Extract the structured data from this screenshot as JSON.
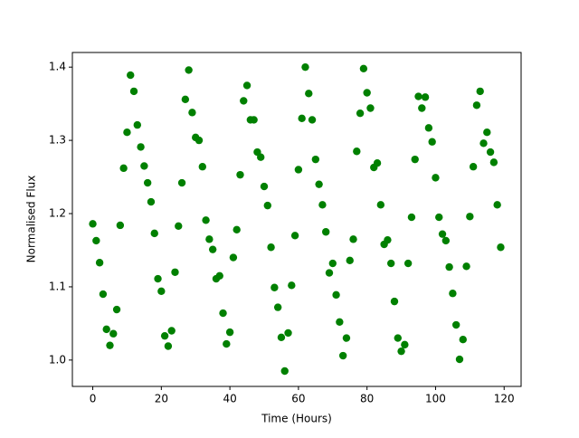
{
  "chart_data": {
    "type": "scatter",
    "xlabel": "Time (Hours)",
    "ylabel": "Normalised Flux",
    "color": "green",
    "x": [
      0,
      1,
      2,
      3,
      4,
      5,
      6,
      7,
      8,
      9,
      10,
      11,
      12,
      13,
      14,
      15,
      16,
      17,
      18,
      19,
      20,
      21,
      22,
      23,
      24,
      25,
      26,
      27,
      28,
      29,
      30,
      31,
      32,
      33,
      34,
      35,
      36,
      37,
      38,
      39,
      40,
      41,
      42,
      43,
      44,
      45,
      46,
      47,
      48,
      49,
      50,
      51,
      52,
      53,
      54,
      55,
      56,
      57,
      58,
      59,
      60,
      61,
      62,
      63,
      64,
      65,
      66,
      67,
      68,
      69,
      70,
      71,
      72,
      73,
      74,
      75,
      76,
      77,
      78,
      79,
      80,
      81,
      82,
      83,
      84,
      85,
      86,
      87,
      88,
      89,
      90,
      91,
      92,
      93,
      94,
      95,
      96,
      97,
      98,
      99,
      100,
      101,
      102,
      103,
      104,
      105,
      106,
      107,
      108,
      109,
      110,
      111,
      112,
      113,
      114,
      115,
      116,
      117,
      118,
      119
    ],
    "values": [
      1.186,
      1.163,
      1.133,
      1.09,
      1.042,
      1.02,
      1.036,
      1.069,
      1.184,
      1.262,
      1.311,
      1.389,
      1.367,
      1.321,
      1.291,
      1.265,
      1.242,
      1.216,
      1.173,
      1.111,
      1.094,
      1.033,
      1.019,
      1.04,
      1.12,
      1.183,
      1.242,
      1.356,
      1.396,
      1.338,
      1.304,
      1.3,
      1.264,
      1.191,
      1.165,
      1.151,
      1.111,
      1.115,
      1.064,
      1.022,
      1.038,
      1.14,
      1.178,
      1.253,
      1.354,
      1.375,
      1.328,
      1.328,
      1.284,
      1.277,
      1.237,
      1.211,
      1.154,
      1.099,
      1.072,
      1.031,
      0.985,
      1.037,
      1.102,
      1.17,
      1.26,
      1.33,
      1.4,
      1.364,
      1.328,
      1.274,
      1.24,
      1.212,
      1.175,
      1.119,
      1.132,
      1.089,
      1.052,
      1.006,
      1.03,
      1.136,
      1.165,
      1.285,
      1.337,
      1.398,
      1.365,
      1.344,
      1.263,
      1.269,
      1.212,
      1.158,
      1.164,
      1.132,
      1.08,
      1.03,
      1.012,
      1.021,
      1.132,
      1.195,
      1.274,
      1.36,
      1.344,
      1.359,
      1.317,
      1.298,
      1.249,
      1.195,
      1.172,
      1.163,
      1.127,
      1.091,
      1.048,
      1.001,
      1.028,
      1.128,
      1.196,
      1.264,
      1.348,
      1.367,
      1.296,
      1.311,
      1.284,
      1.27,
      1.212,
      1.154
    ],
    "xlim": [
      -5.95,
      124.95
    ],
    "xticks": [
      0,
      20,
      40,
      60,
      80,
      100,
      120
    ],
    "ylim": [
      0.964,
      1.42
    ],
    "yticks": [
      {
        "value": 1,
        "label": "1.0"
      },
      1.1,
      1.2,
      1.3,
      {
        "value": 1.4,
        "label": "1.4"
      }
    ]
  }
}
